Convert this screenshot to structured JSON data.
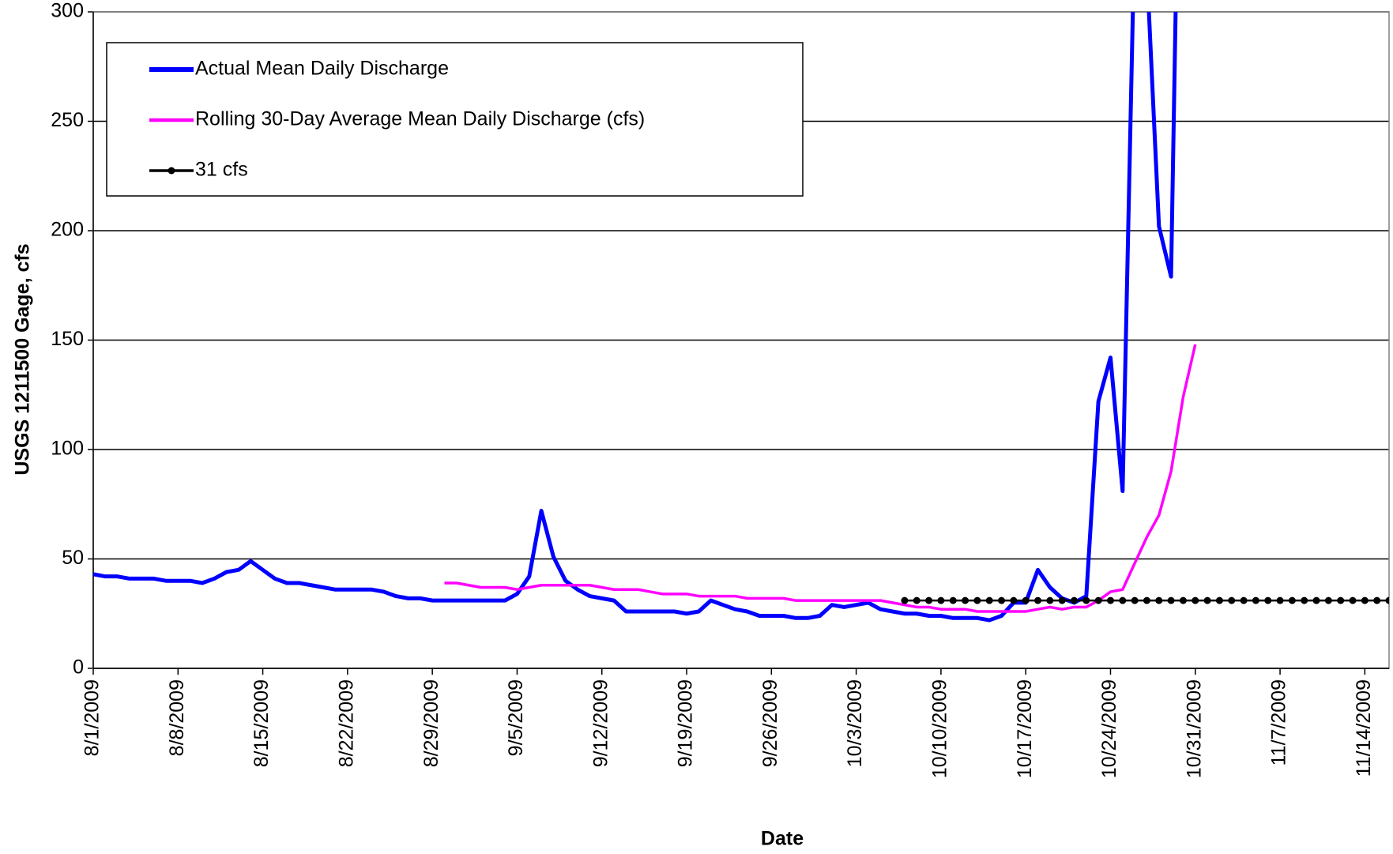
{
  "chart_data": {
    "type": "line",
    "y_label": "USGS 1211500 Gage, cfs",
    "x_label": "Date",
    "x": [
      "8/1/2009",
      "8/2/2009",
      "8/3/2009",
      "8/4/2009",
      "8/5/2009",
      "8/6/2009",
      "8/7/2009",
      "8/8/2009",
      "8/9/2009",
      "8/10/2009",
      "8/11/2009",
      "8/12/2009",
      "8/13/2009",
      "8/14/2009",
      "8/15/2009",
      "8/16/2009",
      "8/17/2009",
      "8/18/2009",
      "8/19/2009",
      "8/20/2009",
      "8/21/2009",
      "8/22/2009",
      "8/23/2009",
      "8/24/2009",
      "8/25/2009",
      "8/26/2009",
      "8/27/2009",
      "8/28/2009",
      "8/29/2009",
      "8/30/2009",
      "8/31/2009",
      "9/1/2009",
      "9/2/2009",
      "9/3/2009",
      "9/4/2009",
      "9/5/2009",
      "9/6/2009",
      "9/7/2009",
      "9/8/2009",
      "9/9/2009",
      "9/10/2009",
      "9/11/2009",
      "9/12/2009",
      "9/13/2009",
      "9/14/2009",
      "9/15/2009",
      "9/16/2009",
      "9/17/2009",
      "9/18/2009",
      "9/19/2009",
      "9/20/2009",
      "9/21/2009",
      "9/22/2009",
      "9/23/2009",
      "9/24/2009",
      "9/25/2009",
      "9/26/2009",
      "9/27/2009",
      "9/28/2009",
      "9/29/2009",
      "9/30/2009",
      "10/1/2009",
      "10/2/2009",
      "10/3/2009",
      "10/4/2009",
      "10/5/2009",
      "10/6/2009",
      "10/7/2009",
      "10/8/2009",
      "10/9/2009",
      "10/10/2009",
      "10/11/2009",
      "10/12/2009",
      "10/13/2009",
      "10/14/2009",
      "10/15/2009",
      "10/16/2009",
      "10/17/2009",
      "10/18/2009",
      "10/19/2009",
      "10/20/2009",
      "10/21/2009",
      "10/22/2009",
      "10/23/2009",
      "10/24/2009",
      "10/25/2009",
      "10/26/2009",
      "10/27/2009",
      "10/28/2009",
      "10/29/2009",
      "10/30/2009",
      "10/31/2009",
      "11/1/2009",
      "11/2/2009",
      "11/3/2009",
      "11/4/2009",
      "11/5/2009",
      "11/6/2009",
      "11/7/2009",
      "11/8/2009",
      "11/9/2009",
      "11/10/2009",
      "11/11/2009",
      "11/12/2009",
      "11/13/2009",
      "11/14/2009",
      "11/15/2009",
      "11/16/2009"
    ],
    "series": [
      {
        "name": "Actual Mean Daily Discharge",
        "color": "#0000ff",
        "width": 5,
        "marker": false,
        "values": [
          43,
          42,
          42,
          41,
          41,
          41,
          40,
          40,
          40,
          39,
          41,
          44,
          45,
          49,
          45,
          41,
          39,
          39,
          38,
          37,
          36,
          36,
          36,
          36,
          35,
          33,
          32,
          32,
          31,
          31,
          31,
          31,
          31,
          31,
          31,
          34,
          42,
          72,
          51,
          40,
          36,
          33,
          32,
          31,
          26,
          26,
          26,
          26,
          26,
          25,
          26,
          31,
          29,
          27,
          26,
          24,
          24,
          24,
          23,
          23,
          24,
          29,
          28,
          29,
          30,
          27,
          26,
          25,
          25,
          24,
          24,
          23,
          23,
          23,
          22,
          24,
          30,
          30,
          45,
          37,
          32,
          30,
          33,
          122,
          142,
          81,
          340,
          320,
          202,
          179,
          500,
          null,
          null,
          null,
          null,
          null,
          null,
          null,
          null,
          null,
          null,
          null,
          null,
          null,
          null,
          null,
          null,
          null
        ]
      },
      {
        "name": "Rolling 30-Day Average Mean Daily Discharge (cfs)",
        "color": "#ff00ff",
        "width": 3.5,
        "marker": false,
        "values": [
          null,
          null,
          null,
          null,
          null,
          null,
          null,
          null,
          null,
          null,
          null,
          null,
          null,
          null,
          null,
          null,
          null,
          null,
          null,
          null,
          null,
          null,
          null,
          null,
          null,
          null,
          null,
          null,
          null,
          39,
          39,
          38,
          37,
          37,
          37,
          36,
          37,
          38,
          38,
          38,
          38,
          38,
          37,
          36,
          36,
          36,
          35,
          34,
          34,
          34,
          33,
          33,
          33,
          33,
          32,
          32,
          32,
          32,
          31,
          31,
          31,
          31,
          31,
          31,
          31,
          31,
          30,
          29,
          28,
          28,
          27,
          27,
          27,
          26,
          26,
          26,
          26,
          26,
          27,
          28,
          27,
          28,
          28,
          31,
          35,
          36,
          48,
          60,
          70,
          90,
          124,
          148,
          null,
          null,
          null,
          null,
          null,
          null,
          null,
          null,
          null,
          null,
          null,
          null,
          null,
          null,
          null,
          null
        ]
      },
      {
        "name": "31 cfs",
        "color": "#000000",
        "width": 2.5,
        "marker": true,
        "values": [
          null,
          null,
          null,
          null,
          null,
          null,
          null,
          null,
          null,
          null,
          null,
          null,
          null,
          null,
          null,
          null,
          null,
          null,
          null,
          null,
          null,
          null,
          null,
          null,
          null,
          null,
          null,
          null,
          null,
          null,
          null,
          null,
          null,
          null,
          null,
          null,
          null,
          null,
          null,
          null,
          null,
          null,
          null,
          null,
          null,
          null,
          null,
          null,
          null,
          null,
          null,
          null,
          null,
          null,
          null,
          null,
          null,
          null,
          null,
          null,
          null,
          null,
          null,
          null,
          null,
          null,
          null,
          31,
          31,
          31,
          31,
          31,
          31,
          31,
          31,
          31,
          31,
          31,
          31,
          31,
          31,
          31,
          31,
          31,
          31,
          31,
          31,
          31,
          31,
          31,
          31,
          31,
          31,
          31,
          31,
          31,
          31,
          31,
          31,
          31,
          31,
          31,
          31,
          31,
          31,
          31,
          31,
          31
        ]
      }
    ],
    "xlim": [
      "8/1/2009",
      "11/16/2009"
    ],
    "xticks": [
      "8/1/2009",
      "8/8/2009",
      "8/15/2009",
      "8/22/2009",
      "8/29/2009",
      "9/5/2009",
      "9/12/2009",
      "9/19/2009",
      "9/26/2009",
      "10/3/2009",
      "10/10/2009",
      "10/17/2009",
      "10/24/2009",
      "10/31/2009",
      "11/7/2009",
      "11/14/2009"
    ],
    "ylim": [
      0,
      300
    ],
    "yticks": [
      0,
      50,
      100,
      150,
      200,
      250,
      300
    ],
    "grid": true,
    "legend": "top-left"
  }
}
